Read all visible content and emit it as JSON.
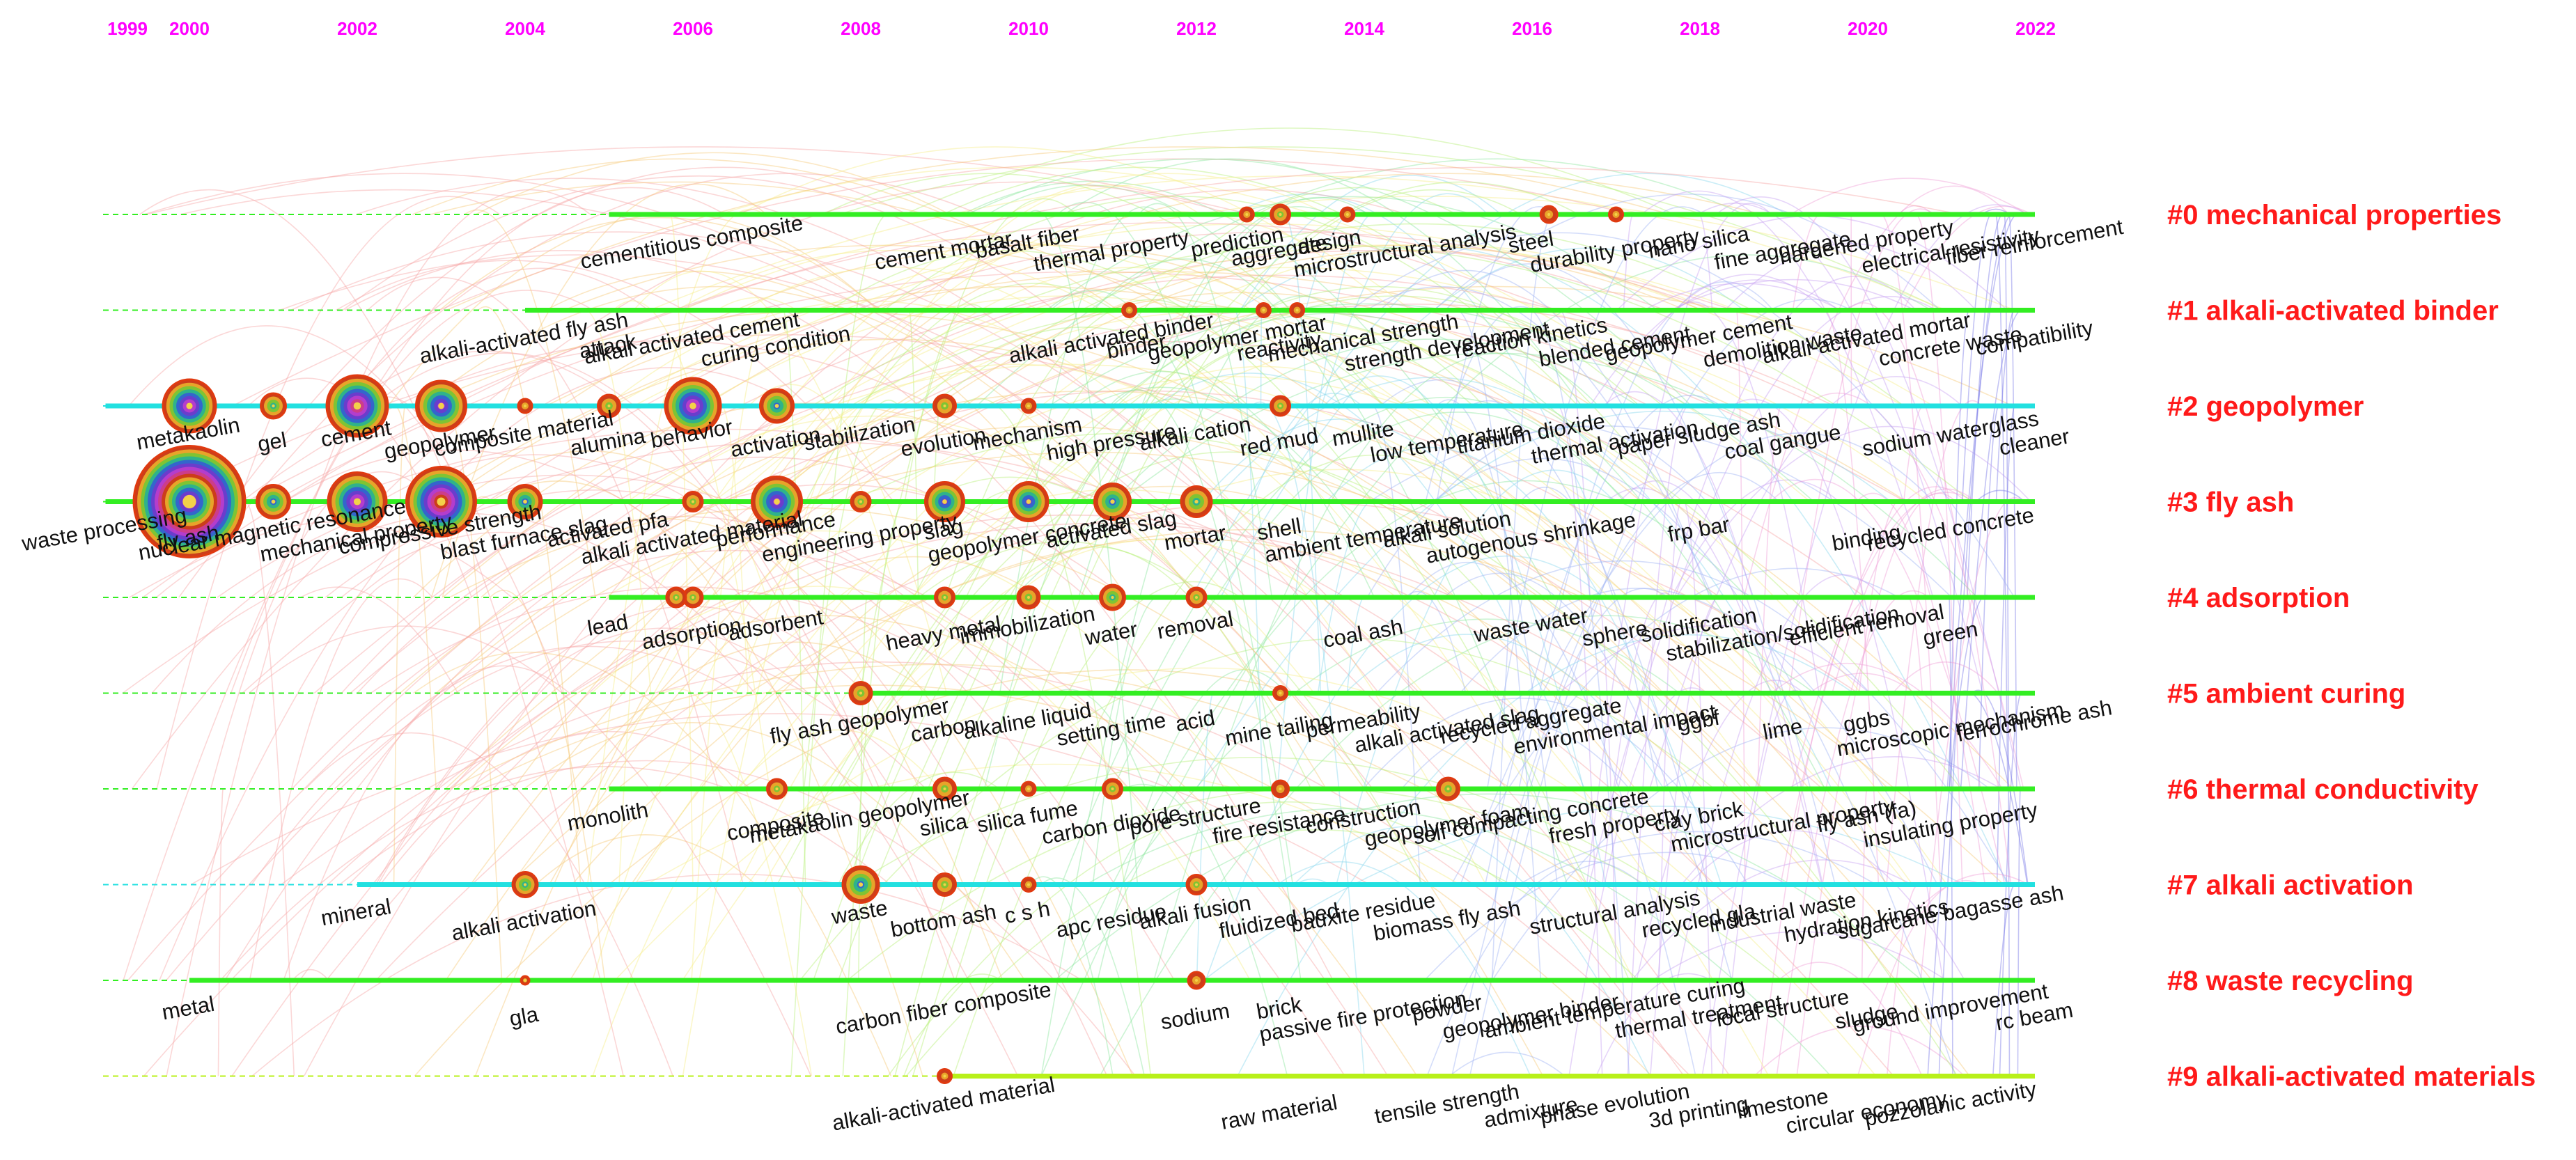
{
  "years": [
    "1999",
    "2000",
    "2002",
    "2004",
    "2006",
    "2008",
    "2010",
    "2012",
    "2014",
    "2016",
    "2018",
    "2020",
    "2022"
  ],
  "colors": {
    "year_label": "#ff00ff",
    "cluster_label": "#ff1a1a",
    "keyword_text": "#111111",
    "timeline_green": "#33ee22",
    "timeline_cyan": "#22e0e0",
    "timeline_lime": "#b8f01a"
  },
  "clusters": [
    {
      "label": "#0 mechanical properties",
      "start": "2005",
      "color": "#33ee22",
      "keywords": [
        [
          "cementitious composite",
          "2006"
        ],
        [
          "cement mortar",
          "2009"
        ],
        [
          "basalt fiber",
          "2010"
        ],
        [
          "thermal property",
          "2011"
        ],
        [
          "prediction",
          "2012.5"
        ],
        [
          "aggregate",
          "2013"
        ],
        [
          "design",
          "2013.6"
        ],
        [
          "microstructural analysis",
          "2014.5"
        ],
        [
          "steel",
          "2016"
        ],
        [
          "durability property",
          "2017"
        ],
        [
          "nano silica",
          "2018"
        ],
        [
          "fine aggregate",
          "2019"
        ],
        [
          "hardened property",
          "2020"
        ],
        [
          "electrical resistivity",
          "2021"
        ],
        [
          "fiber reinforcement",
          "2022"
        ]
      ]
    },
    {
      "label": "#1 alkali-activated binder",
      "start": "2004",
      "color": "#33ee22",
      "keywords": [
        [
          "alkali-activated fly ash",
          "2004"
        ],
        [
          "attack",
          "2005"
        ],
        [
          "alkali activated cement",
          "2006"
        ],
        [
          "curing condition",
          "2007"
        ],
        [
          "alkali activated binder",
          "2011"
        ],
        [
          "binder",
          "2011.3"
        ],
        [
          "geopolymer mortar",
          "2012.5"
        ],
        [
          "reactivity",
          "2013"
        ],
        [
          "mechanical strength",
          "2014"
        ],
        [
          "strength development",
          "2015"
        ],
        [
          "reaction kinetics",
          "2016"
        ],
        [
          "blended cement",
          "2017"
        ],
        [
          "geopolymer cement",
          "2018"
        ],
        [
          "demolition waste",
          "2019"
        ],
        [
          "alkali-activated mortar",
          "2020"
        ],
        [
          "concrete waste",
          "2021"
        ],
        [
          "compatibility",
          "2022"
        ]
      ]
    },
    {
      "label": "#2 geopolymer",
      "start": "1999",
      "color": "#22e0e0",
      "keywords": [
        [
          "metakaolin",
          "2000"
        ],
        [
          "gel",
          "2001"
        ],
        [
          "cement",
          "2002"
        ],
        [
          "geopolymer",
          "2003"
        ],
        [
          "composite material",
          "2004"
        ],
        [
          "alumina",
          "2005"
        ],
        [
          "behavior",
          "2006"
        ],
        [
          "activation",
          "2007"
        ],
        [
          "stabilization",
          "2008"
        ],
        [
          "evolution",
          "2009"
        ],
        [
          "mechanism",
          "2010"
        ],
        [
          "high pressure",
          "2011"
        ],
        [
          "alkali cation",
          "2012"
        ],
        [
          "red mud",
          "2013"
        ],
        [
          "mullite",
          "2014"
        ],
        [
          "low temperature",
          "2015"
        ],
        [
          "titanium dioxide",
          "2016"
        ],
        [
          "thermal activation",
          "2017"
        ],
        [
          "paper sludge ash",
          "2018"
        ],
        [
          "coal gangue",
          "2019"
        ],
        [
          "sodium waterglass",
          "2021"
        ],
        [
          "cleaner",
          "2022"
        ]
      ]
    },
    {
      "label": "#3 fly ash",
      "start": "1999",
      "color": "#33ee22",
      "keywords": [
        [
          "waste processing",
          "1999"
        ],
        [
          "fly ash",
          "2000"
        ],
        [
          "nuclear magnetic resonance",
          "2001"
        ],
        [
          "mechanical property",
          "2002"
        ],
        [
          "compressive strength",
          "2003"
        ],
        [
          "blast furnace slag",
          "2004"
        ],
        [
          "activated pfa",
          "2005"
        ],
        [
          "alkali activated material",
          "2006"
        ],
        [
          "performance",
          "2007"
        ],
        [
          "engineering property",
          "2008"
        ],
        [
          "slag",
          "2009"
        ],
        [
          "geopolymer concrete",
          "2010"
        ],
        [
          "activated slag",
          "2011"
        ],
        [
          "mortar",
          "2012"
        ],
        [
          "shell",
          "2013"
        ],
        [
          "ambient temperature",
          "2014"
        ],
        [
          "alkali solution",
          "2015"
        ],
        [
          "autogenous shrinkage",
          "2016"
        ],
        [
          "frp bar",
          "2018"
        ],
        [
          "binding",
          "2020"
        ],
        [
          "recycled concrete",
          "2021"
        ]
      ]
    },
    {
      "label": "#4 adsorption",
      "start": "2005",
      "color": "#33ee22",
      "keywords": [
        [
          "lead",
          "2005"
        ],
        [
          "adsorption",
          "2006"
        ],
        [
          "adsorbent",
          "2007"
        ],
        [
          "heavy metal",
          "2009"
        ],
        [
          "immobilization",
          "2010"
        ],
        [
          "water",
          "2011"
        ],
        [
          "removal",
          "2012"
        ],
        [
          "coal ash",
          "2014"
        ],
        [
          "waste water",
          "2016"
        ],
        [
          "sphere",
          "2017"
        ],
        [
          "solidification",
          "2018"
        ],
        [
          "stabilization/solidification",
          "2019"
        ],
        [
          "efficient removal",
          "2020"
        ],
        [
          "green",
          "2021"
        ]
      ]
    },
    {
      "label": "#5 ambient curing",
      "start": "2008",
      "color": "#33ee22",
      "keywords": [
        [
          "fly ash geopolymer",
          "2008"
        ],
        [
          "carbon",
          "2009"
        ],
        [
          "alkaline liquid",
          "2010"
        ],
        [
          "setting time",
          "2011"
        ],
        [
          "acid",
          "2012"
        ],
        [
          "mine tailing",
          "2013"
        ],
        [
          "permeability",
          "2014"
        ],
        [
          "alkali activated slag",
          "2015"
        ],
        [
          "recycled aggregate",
          "2016"
        ],
        [
          "environmental impact",
          "2017"
        ],
        [
          "ggbf",
          "2018"
        ],
        [
          "lime",
          "2019"
        ],
        [
          "ggbs",
          "2020"
        ],
        [
          "microscopic mechanism",
          "2021"
        ],
        [
          "ferrochrome ash",
          "2022"
        ]
      ]
    },
    {
      "label": "#6 thermal conductivity",
      "start": "2005",
      "color": "#33ee22",
      "keywords": [
        [
          "monolith",
          "2005"
        ],
        [
          "composite",
          "2007"
        ],
        [
          "metakaolin geopolymer",
          "2008"
        ],
        [
          "silica",
          "2009"
        ],
        [
          "silica fume",
          "2010"
        ],
        [
          "carbon dioxide",
          "2011"
        ],
        [
          "pore structure",
          "2012"
        ],
        [
          "fire resistance",
          "2013"
        ],
        [
          "construction",
          "2014"
        ],
        [
          "geopolymer foam",
          "2015"
        ],
        [
          "self compacting concrete",
          "2016"
        ],
        [
          "fresh property",
          "2017"
        ],
        [
          "clay brick",
          "2018"
        ],
        [
          "microstructural property",
          "2019"
        ],
        [
          "fly ash (fa)",
          "2020"
        ],
        [
          "insulating property",
          "2021"
        ]
      ]
    },
    {
      "label": "#7 alkali activation",
      "start": "2002",
      "color": "#22e0e0",
      "keywords": [
        [
          "mineral",
          "2002"
        ],
        [
          "alkali activation",
          "2004"
        ],
        [
          "waste",
          "2008"
        ],
        [
          "bottom ash",
          "2009"
        ],
        [
          "c s h",
          "2010"
        ],
        [
          "apc residue",
          "2011"
        ],
        [
          "alkali fusion",
          "2012"
        ],
        [
          "fluidized bed",
          "2013"
        ],
        [
          "bauxite residue",
          "2014"
        ],
        [
          "biomass fly ash",
          "2015"
        ],
        [
          "structural analysis",
          "2017"
        ],
        [
          "recycled gla",
          "2018"
        ],
        [
          "industrial waste",
          "2019"
        ],
        [
          "hydration kinetics",
          "2020"
        ],
        [
          "sugarcane bagasse ash",
          "2021"
        ]
      ]
    },
    {
      "label": "#8 waste recycling",
      "start": "2000",
      "color": "#33ee22",
      "keywords": [
        [
          "metal",
          "2000"
        ],
        [
          "gla",
          "2004"
        ],
        [
          "carbon fiber composite",
          "2009"
        ],
        [
          "sodium",
          "2012"
        ],
        [
          "brick",
          "2013"
        ],
        [
          "passive fire protection",
          "2014"
        ],
        [
          "powder",
          "2015"
        ],
        [
          "geopolymer binder",
          "2016"
        ],
        [
          "ambient temperature curing",
          "2017"
        ],
        [
          "thermal treatment",
          "2018"
        ],
        [
          "local structure",
          "2019"
        ],
        [
          "sludge",
          "2020"
        ],
        [
          "ground improvement",
          "2021"
        ],
        [
          "rc beam",
          "2022"
        ]
      ]
    },
    {
      "label": "#9 alkali-activated materials",
      "start": "2009",
      "color": "#b8f01a",
      "keywords": [
        [
          "alkali-activated material",
          "2009"
        ],
        [
          "raw material",
          "2013"
        ],
        [
          "tensile strength",
          "2015"
        ],
        [
          "admixture",
          "2016"
        ],
        [
          "phase evolution",
          "2017"
        ],
        [
          "3d printing",
          "2018"
        ],
        [
          "limestone",
          "2019"
        ],
        [
          "circular economy",
          "2020"
        ],
        [
          "pozzolanic activity",
          "2021"
        ]
      ]
    }
  ],
  "nodes": [
    [
      3,
      "2000",
      80
    ],
    [
      3,
      "2001",
      24
    ],
    [
      3,
      "2002",
      42
    ],
    [
      3,
      "2003",
      50
    ],
    [
      3,
      "2004",
      24
    ],
    [
      3,
      "2007",
      36
    ],
    [
      3,
      "2009",
      28
    ],
    [
      3,
      "2010",
      28
    ],
    [
      3,
      "2011",
      26
    ],
    [
      3,
      "2012",
      22
    ],
    [
      3,
      "2008",
      14
    ],
    [
      3,
      "2006",
      14
    ],
    [
      2,
      "2000",
      38
    ],
    [
      2,
      "2001",
      18
    ],
    [
      2,
      "2002",
      44
    ],
    [
      2,
      "2003",
      36
    ],
    [
      2,
      "2005",
      16
    ],
    [
      2,
      "2006",
      40
    ],
    [
      2,
      "2007",
      24
    ],
    [
      2,
      "2009",
      16
    ],
    [
      2,
      "2010",
      10
    ],
    [
      2,
      "2013",
      14
    ],
    [
      2,
      "2004",
      10
    ],
    [
      4,
      "2006",
      14
    ],
    [
      4,
      "2005.8",
      14
    ],
    [
      4,
      "2009",
      14
    ],
    [
      4,
      "2010",
      16
    ],
    [
      4,
      "2011",
      18
    ],
    [
      4,
      "2012",
      14
    ],
    [
      5,
      "2008",
      16
    ],
    [
      5,
      "2013",
      10
    ],
    [
      6,
      "2007",
      14
    ],
    [
      6,
      "2009",
      16
    ],
    [
      6,
      "2011",
      14
    ],
    [
      6,
      "2013",
      12
    ],
    [
      6,
      "2015",
      16
    ],
    [
      6,
      "2010",
      10
    ],
    [
      7,
      "2004",
      18
    ],
    [
      7,
      "2008",
      26
    ],
    [
      7,
      "2009",
      16
    ],
    [
      7,
      "2012",
      14
    ],
    [
      7,
      "2010",
      10
    ],
    [
      0,
      "2013",
      14
    ],
    [
      0,
      "2012.6",
      10
    ],
    [
      0,
      "2013.8",
      10
    ],
    [
      0,
      "2016.2",
      12
    ],
    [
      0,
      "2017",
      10
    ],
    [
      1,
      "2011.2",
      10
    ],
    [
      1,
      "2012.8",
      10
    ],
    [
      1,
      "2013.2",
      10
    ],
    [
      8,
      "2012",
      12
    ],
    [
      8,
      "2004",
      6
    ],
    [
      9,
      "2009",
      10
    ]
  ]
}
